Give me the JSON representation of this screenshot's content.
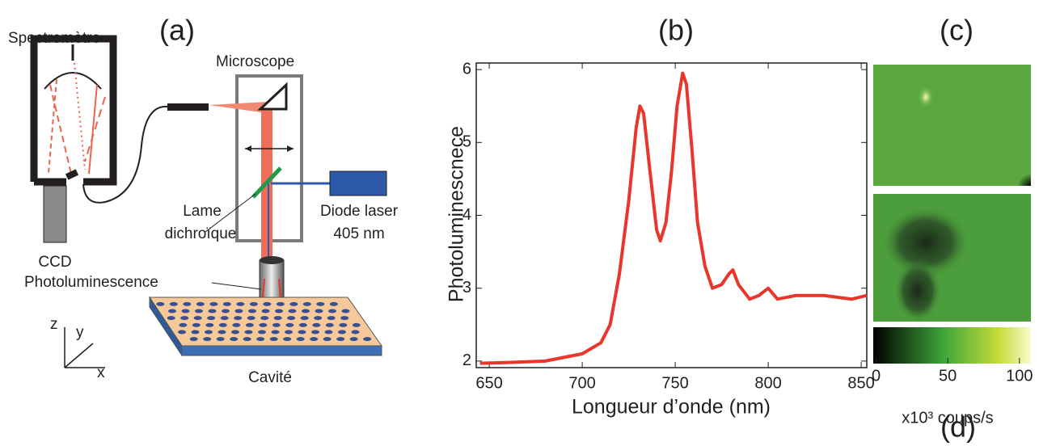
{
  "panels": {
    "a": "(a)",
    "b": "(b)",
    "c": "(c)",
    "d": "(d)"
  },
  "diagram": {
    "spectrometer": "Spectromètre",
    "microscope": "Microscope",
    "ccd": "CCD",
    "dichroic_1": "Lame",
    "dichroic_2": "dichroïque",
    "laser_1": "Diode laser",
    "laser_2": "405 nm",
    "photoluminescence": "Photoluminescence",
    "cavity": "Cavité",
    "axis_z": "z",
    "axis_y": "y",
    "axis_x": "x"
  },
  "chart_data": {
    "type": "line",
    "xlabel": "Longueur d’onde (nm)",
    "ylabel": "Photoluminescnece",
    "x": [
      645,
      660,
      680,
      700,
      710,
      715,
      720,
      725,
      729,
      731,
      733,
      736,
      740,
      742,
      745,
      748,
      751,
      754,
      756,
      759,
      762,
      766,
      770,
      775,
      779,
      781,
      784,
      790,
      795,
      800,
      805,
      815,
      830,
      845,
      853
    ],
    "series": [
      {
        "name": "Photoluminescence",
        "color": "#e8362d",
        "values": [
          1.97,
          1.98,
          2.0,
          2.1,
          2.25,
          2.5,
          3.2,
          4.2,
          5.2,
          5.5,
          5.4,
          4.7,
          3.8,
          3.65,
          3.9,
          4.6,
          5.5,
          5.95,
          5.8,
          4.9,
          3.9,
          3.3,
          3.0,
          3.05,
          3.2,
          3.25,
          3.05,
          2.85,
          2.9,
          3.0,
          2.85,
          2.9,
          2.9,
          2.85,
          2.9
        ]
      }
    ],
    "xlim": [
      643,
      853
    ],
    "ylim": [
      1.91,
      6.09
    ],
    "xticks": [
      650,
      700,
      750,
      800,
      850
    ],
    "yticks": [
      2,
      3,
      4,
      5,
      6
    ]
  },
  "colorbar": {
    "lim": [
      -2,
      108
    ],
    "ticks": [
      0,
      50,
      100
    ],
    "label": "x10³ coups/s"
  }
}
